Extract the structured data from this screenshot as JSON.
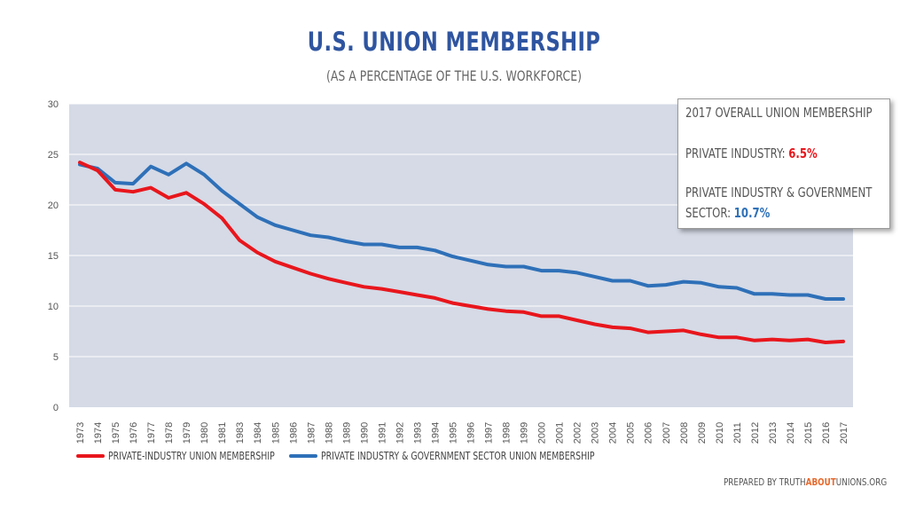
{
  "chart_data": {
    "type": "line",
    "title": "U.S. UNION MEMBERSHIP",
    "subtitle": "(AS A PERCENTAGE OF THE U.S. WORKFORCE)",
    "xlabel": "",
    "ylabel": "",
    "ylim": [
      0,
      30
    ],
    "yticks": [
      0,
      5,
      10,
      15,
      20,
      25,
      30
    ],
    "grid": true,
    "legend_position": "bottom",
    "x": [
      "1973",
      "1974",
      "1975",
      "1976",
      "1977",
      "1978",
      "1979",
      "1980",
      "1981",
      "1983",
      "1984",
      "1985",
      "1986",
      "1987",
      "1988",
      "1989",
      "1990",
      "1991",
      "1992",
      "1993",
      "1994",
      "1995",
      "1996",
      "1997",
      "1998",
      "1999",
      "2000",
      "2001",
      "2002",
      "2003",
      "2004",
      "2005",
      "2006",
      "2007",
      "2008",
      "2009",
      "2010",
      "2011",
      "2012",
      "2013",
      "2014",
      "2015",
      "2016",
      "2017"
    ],
    "series": [
      {
        "name": "PRIVATE-INDUSTRY UNION MEMBERSHIP",
        "color": "#e8161c",
        "values": [
          24.2,
          23.4,
          21.5,
          21.3,
          21.7,
          20.7,
          21.2,
          20.1,
          18.7,
          16.5,
          15.3,
          14.4,
          13.8,
          13.2,
          12.7,
          12.3,
          11.9,
          11.7,
          11.4,
          11.1,
          10.8,
          10.3,
          10.0,
          9.7,
          9.5,
          9.4,
          9.0,
          9.0,
          8.6,
          8.2,
          7.9,
          7.8,
          7.4,
          7.5,
          7.6,
          7.2,
          6.9,
          6.9,
          6.6,
          6.7,
          6.6,
          6.7,
          6.4,
          6.5
        ]
      },
      {
        "name": "PRIVATE INDUSTRY & GOVERNMENT SECTOR UNION MEMBERSHIP",
        "color": "#2e70b8",
        "values": [
          24.0,
          23.6,
          22.2,
          22.1,
          23.8,
          23.0,
          24.1,
          23.0,
          21.4,
          20.1,
          18.8,
          18.0,
          17.5,
          17.0,
          16.8,
          16.4,
          16.1,
          16.1,
          15.8,
          15.8,
          15.5,
          14.9,
          14.5,
          14.1,
          13.9,
          13.9,
          13.5,
          13.5,
          13.3,
          12.9,
          12.5,
          12.5,
          12.0,
          12.1,
          12.4,
          12.3,
          11.9,
          11.8,
          11.2,
          11.2,
          11.1,
          11.1,
          10.7,
          10.7
        ]
      }
    ],
    "callout": {
      "heading": "2017 OVERALL UNION MEMBERSHIP",
      "private_label": "PRIVATE INDUSTRY:",
      "private_value": "6.5%",
      "combined_label_line1": "PRIVATE INDUSTRY & GOVERNMENT",
      "combined_label_line2": "SECTOR:",
      "combined_value": "10.7%"
    }
  },
  "credit": {
    "prefix": "PREPARED BY TRUTH",
    "accent": "ABOUT",
    "suffix": "UNIONS.ORG"
  },
  "colors": {
    "plot_background": "#d5dae6",
    "grid": "#ffffff",
    "title": "#2f55a0",
    "red": "#e8161c",
    "blue": "#2e70b8"
  }
}
